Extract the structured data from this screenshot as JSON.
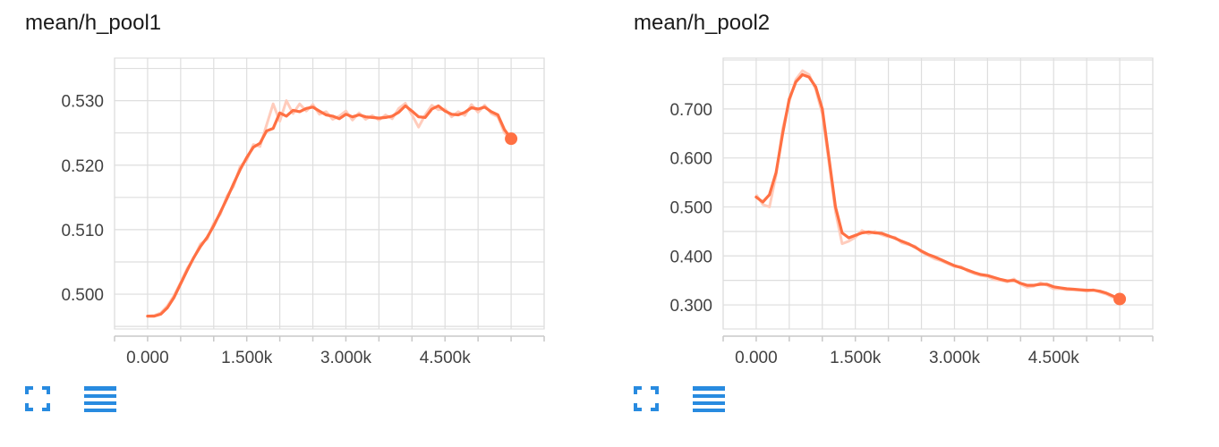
{
  "colors": {
    "series": "#ff7043",
    "series_raw": "#ffccbc",
    "grid": "#dedede",
    "icon": "#288be0"
  },
  "icons": {
    "expand": "expand-icon",
    "data_table": "data-table-icon"
  },
  "chart_data": [
    {
      "type": "line",
      "title": "mean/h_pool1",
      "x_ticks": [
        "0.000",
        "1.500k",
        "3.000k",
        "4.500k"
      ],
      "x_tick_values": [
        0,
        1500,
        3000,
        4500
      ],
      "y_ticks": [
        "0.500",
        "0.510",
        "0.520",
        "0.530"
      ],
      "y_tick_values": [
        0.5,
        0.51,
        0.52,
        0.53
      ],
      "xlim": [
        -500,
        6000
      ],
      "ylim": [
        0.4946,
        0.5366
      ],
      "grid": true,
      "series": [
        {
          "x": [
            0,
            100,
            200,
            300,
            400,
            500,
            600,
            700,
            800,
            900,
            1000,
            1100,
            1200,
            1300,
            1400,
            1500,
            1600,
            1700,
            1800,
            1900,
            2000,
            2100,
            2200,
            2300,
            2400,
            2500,
            2600,
            2700,
            2800,
            2900,
            3000,
            3100,
            3200,
            3300,
            3400,
            3500,
            3600,
            3700,
            3800,
            3900,
            4000,
            4100,
            4200,
            4300,
            4400,
            4500,
            4600,
            4700,
            4800,
            4900,
            5000,
            5100,
            5200,
            5300,
            5400,
            5500
          ],
          "y": [
            0.4966,
            0.4966,
            0.4969,
            0.4979,
            0.4995,
            0.5016,
            0.5037,
            0.5057,
            0.5074,
            0.5088,
            0.5106,
            0.5127,
            0.5148,
            0.5171,
            0.5193,
            0.5212,
            0.5228,
            0.5234,
            0.5253,
            0.5257,
            0.5281,
            0.5276,
            0.5285,
            0.5283,
            0.5288,
            0.529,
            0.5284,
            0.5278,
            0.5276,
            0.5272,
            0.5279,
            0.5275,
            0.5278,
            0.5275,
            0.5274,
            0.5273,
            0.5274,
            0.5276,
            0.5282,
            0.5292,
            0.5284,
            0.5275,
            0.5274,
            0.5287,
            0.5292,
            0.5284,
            0.5279,
            0.5278,
            0.5282,
            0.5289,
            0.5287,
            0.529,
            0.5283,
            0.5278,
            0.5255,
            0.5241
          ],
          "raw": [
            0.4966,
            0.4967,
            0.4971,
            0.4982,
            0.4998,
            0.5018,
            0.504,
            0.5056,
            0.5078,
            0.5085,
            0.511,
            0.5124,
            0.5152,
            0.5167,
            0.5198,
            0.5208,
            0.5232,
            0.5229,
            0.5262,
            0.5295,
            0.5268,
            0.53,
            0.528,
            0.5295,
            0.5284,
            0.5294,
            0.5279,
            0.5283,
            0.5271,
            0.5276,
            0.5284,
            0.527,
            0.5281,
            0.5271,
            0.5277,
            0.527,
            0.5278,
            0.5272,
            0.5288,
            0.5296,
            0.5278,
            0.5259,
            0.5278,
            0.5293,
            0.5286,
            0.5287,
            0.5275,
            0.5283,
            0.5277,
            0.5294,
            0.5282,
            0.5293,
            0.528,
            0.5275,
            0.525,
            0.5241
          ]
        }
      ]
    },
    {
      "type": "line",
      "title": "mean/h_pool2",
      "x_ticks": [
        "0.000",
        "1.500k",
        "3.000k",
        "4.500k"
      ],
      "x_tick_values": [
        0,
        1500,
        3000,
        4500
      ],
      "y_ticks": [
        "0.300",
        "0.400",
        "0.500",
        "0.600",
        "0.700"
      ],
      "y_tick_values": [
        0.3,
        0.4,
        0.5,
        0.6,
        0.7
      ],
      "xlim": [
        -500,
        6000
      ],
      "ylim": [
        0.2508,
        0.8038
      ],
      "grid": true,
      "series": [
        {
          "x": [
            0,
            100,
            200,
            300,
            400,
            500,
            600,
            700,
            800,
            900,
            1000,
            1100,
            1200,
            1300,
            1400,
            1500,
            1600,
            1700,
            1800,
            1900,
            2000,
            2100,
            2200,
            2300,
            2400,
            2500,
            2600,
            2700,
            2800,
            2900,
            3000,
            3100,
            3200,
            3300,
            3400,
            3500,
            3600,
            3700,
            3800,
            3900,
            4000,
            4100,
            4200,
            4300,
            4400,
            4500,
            4600,
            4700,
            4800,
            4900,
            5000,
            5100,
            5200,
            5300,
            5400,
            5500
          ],
          "y": [
            0.52,
            0.51,
            0.525,
            0.57,
            0.65,
            0.72,
            0.755,
            0.77,
            0.765,
            0.745,
            0.7,
            0.6,
            0.5,
            0.447,
            0.437,
            0.442,
            0.447,
            0.449,
            0.447,
            0.446,
            0.441,
            0.436,
            0.43,
            0.425,
            0.418,
            0.41,
            0.403,
            0.398,
            0.392,
            0.386,
            0.38,
            0.376,
            0.371,
            0.366,
            0.362,
            0.36,
            0.356,
            0.352,
            0.349,
            0.35,
            0.344,
            0.34,
            0.34,
            0.342,
            0.342,
            0.337,
            0.335,
            0.333,
            0.332,
            0.331,
            0.33,
            0.33,
            0.328,
            0.324,
            0.318,
            0.312
          ],
          "raw": [
            0.525,
            0.505,
            0.5,
            0.565,
            0.66,
            0.715,
            0.76,
            0.778,
            0.77,
            0.74,
            0.69,
            0.59,
            0.49,
            0.425,
            0.43,
            0.438,
            0.452,
            0.445,
            0.45,
            0.443,
            0.439,
            0.438,
            0.427,
            0.423,
            0.42,
            0.408,
            0.401,
            0.394,
            0.39,
            0.384,
            0.378,
            0.378,
            0.369,
            0.364,
            0.36,
            0.358,
            0.352,
            0.35,
            0.347,
            0.353,
            0.342,
            0.336,
            0.338,
            0.345,
            0.34,
            0.333,
            0.333,
            0.331,
            0.331,
            0.33,
            0.328,
            0.331,
            0.326,
            0.322,
            0.315,
            0.311
          ]
        }
      ]
    }
  ]
}
